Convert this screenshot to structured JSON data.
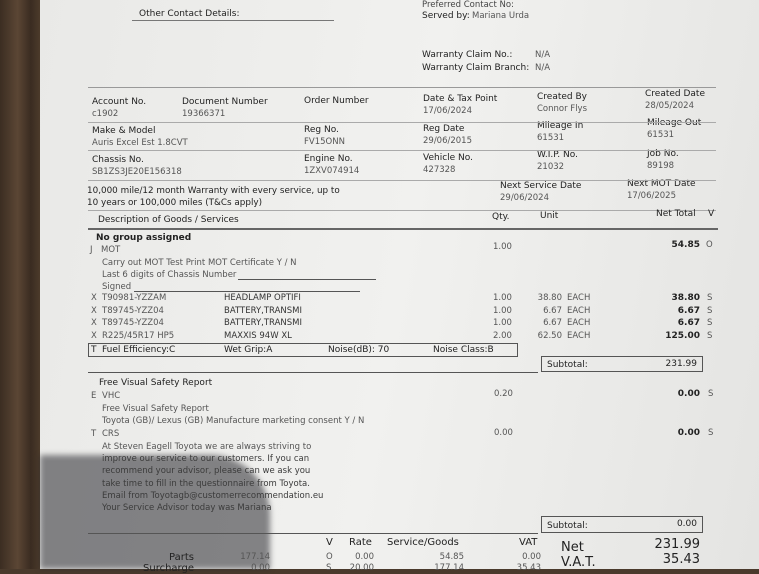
{
  "header": {
    "preferred_contact": "Preferred Contact No:",
    "other_contact_label": "Other Contact Details:",
    "served_by_label": "Served by:",
    "served_by": "Mariana Urda",
    "warranty_claim_no_label": "Warranty Claim No.:",
    "warranty_claim_no": "N/A",
    "warranty_claim_branch_label": "Warranty Claim Branch:",
    "warranty_claim_branch": "N/A"
  },
  "fields": [
    {
      "label": "Account No.",
      "value": "c1902"
    },
    {
      "label": "Document Number",
      "value": "19366371"
    },
    {
      "label": "Order Number",
      "value": ""
    },
    {
      "label": "Date & Tax Point",
      "value": "17/06/2024"
    },
    {
      "label": "Created By",
      "value": "Connor Flys"
    },
    {
      "label": "Created Date",
      "value": "28/05/2024"
    },
    {
      "label": "Make & Model",
      "value": "Auris Excel Est 1.8CVT"
    },
    {
      "label": "Reg No.",
      "value": "FV15ONN"
    },
    {
      "label": "Reg Date",
      "value": "29/06/2015"
    },
    {
      "label": "Mileage In",
      "value": "61531"
    },
    {
      "label": "Mileage Out",
      "value": "61531"
    },
    {
      "label": "Chassis No.",
      "value": "SB1ZS3JE20E156318"
    },
    {
      "label": "Engine No.",
      "value": "1ZXV074914"
    },
    {
      "label": "Vehicle No.",
      "value": "427328"
    },
    {
      "label": "W.I.P. No.",
      "value": "21032"
    },
    {
      "label": "Job No.",
      "value": "89198"
    },
    {
      "label": "Next Service Date",
      "value": "29/06/2024"
    },
    {
      "label": "Next MOT Date",
      "value": "17/06/2025"
    }
  ],
  "warranty_note": [
    "10,000 mile/12 month Warranty with every service, up to",
    "10 years or 100,000 miles (T&Cs apply)"
  ],
  "columns": {
    "desc": "Description of Goods / Services",
    "qty": "Qty.",
    "unit": "Unit",
    "net": "Net Total",
    "v": "V"
  },
  "group1": {
    "title": "No group assigned",
    "code": "J",
    "name": "MOT",
    "qty": "1.00",
    "net": "54.85",
    "v": "O",
    "notes": [
      "Carry out MOT Test  Print MOT Certificate Y  /  N",
      "Last 6 digits of Chassis Number",
      "Signed"
    ]
  },
  "items": [
    {
      "code": "X",
      "part": "T90981-YZZAM",
      "desc": "HEADLAMP OPTIFI",
      "qty": "1.00",
      "unit": "38.80",
      "each": "EACH",
      "net": "38.80",
      "v": "S"
    },
    {
      "code": "X",
      "part": "T89745-YZZ04",
      "desc": "BATTERY,TRANSMI",
      "qty": "1.00",
      "unit": "6.67",
      "each": "EACH",
      "net": "6.67",
      "v": "S"
    },
    {
      "code": "X",
      "part": "T89745-YZZ04",
      "desc": "BATTERY,TRANSMI",
      "qty": "1.00",
      "unit": "6.67",
      "each": "EACH",
      "net": "6.67",
      "v": "S"
    },
    {
      "code": "X",
      "part": "R225/45R17    HP5",
      "desc": "MAXXIS  94W  XL",
      "qty": "2.00",
      "unit": "62.50",
      "each": "EACH",
      "net": "125.00",
      "v": "S"
    }
  ],
  "tyre": {
    "code": "T",
    "fuel": "Fuel Efficiency:C",
    "grip": "Wet Grip:A",
    "noise": "Noise(dB): 70",
    "noise_class": "Noise Class:B"
  },
  "subtotal1": {
    "label": "Subtotal:",
    "value": "231.99"
  },
  "group2": {
    "title": "Free Visual Safety Report",
    "vhc": {
      "code": "E",
      "name": "VHC",
      "qty": "0.20",
      "net": "0.00",
      "v": "S"
    },
    "vhc_notes": [
      "Free Visual Safety Report",
      "Toyota (GB)/ Lexus (GB) Manufacture marketing consent  Y / N"
    ],
    "crs": {
      "code": "T",
      "name": "CRS",
      "qty": "0.00",
      "net": "0.00",
      "v": "S"
    },
    "crs_notes": [
      "At Steven Eagell Toyota we are always striving to",
      "improve our service to our customers. If you can",
      "recommend your advisor, please can we ask you",
      "take time to fill in the questionnaire from Toyota.",
      "Email  from Toyotagb@customerrecommendation.eu",
      "Your Service Advisor today was Mariana"
    ]
  },
  "subtotal2": {
    "label": "Subtotal:",
    "value": "0.00"
  },
  "summary": {
    "headers": {
      "v": "V",
      "rate": "Rate",
      "sg": "Service/Goods",
      "vat": "VAT"
    },
    "rows": [
      {
        "label": "Parts",
        "amount": "177.14",
        "v": "O",
        "rate": "0.00",
        "sg": "54.85",
        "vat": "0.00"
      },
      {
        "label": "Surcharge",
        "amount": "0.00",
        "v": "S",
        "rate": "20.00",
        "sg": "177.14",
        "vat": "35.43"
      }
    ]
  },
  "totals": {
    "net_label": "Net",
    "net": "231.99",
    "vat_label": "V.A.T.",
    "vat": "35.43"
  }
}
